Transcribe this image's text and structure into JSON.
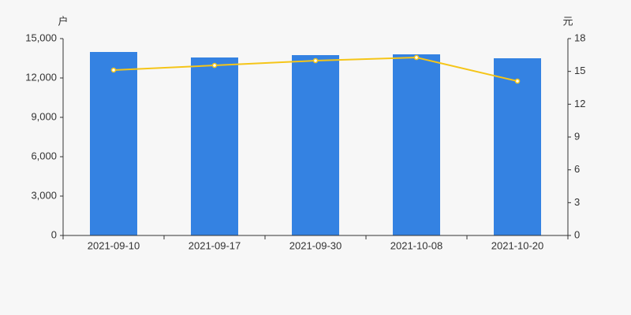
{
  "chart_data": {
    "type": "bar-line",
    "y_label": "户",
    "y2_label": "元",
    "categories": [
      "2021-09-10",
      "2021-09-17",
      "2021-09-30",
      "2021-10-08",
      "2021-10-20"
    ],
    "series": [
      {
        "type": "bar",
        "color": "#3482e2",
        "values": [
          13980,
          13560,
          13740,
          13800,
          13500
        ]
      },
      {
        "type": "line",
        "axis": "y2",
        "color": "#f5c518",
        "values": [
          15.12,
          15.55,
          15.98,
          16.27,
          14.11
        ]
      }
    ],
    "ylim": [
      0,
      15000
    ],
    "yticks": [
      0,
      {
        "value": 3000,
        "label": "3,000"
      },
      {
        "value": 6000,
        "label": "6,000"
      },
      {
        "value": 9000,
        "label": "9,000"
      },
      {
        "value": 12000,
        "label": "12,000"
      },
      {
        "value": 15000,
        "label": "15,000"
      }
    ],
    "y2lim": [
      0,
      18
    ],
    "y2ticks": [
      0,
      3,
      6,
      9,
      12,
      15,
      18
    ]
  }
}
